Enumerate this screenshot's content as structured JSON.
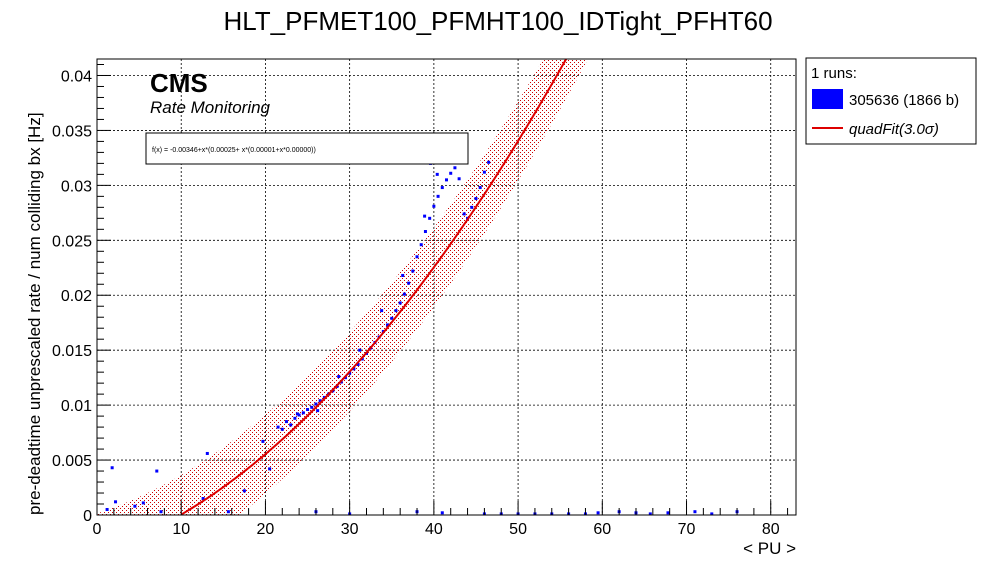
{
  "chart_data": {
    "type": "scatter",
    "title": "HLT_PFMET100_PFMHT100_IDTight_PFHT60",
    "xlabel": "< PU >",
    "ylabel": "pre-deadtime unprescaled rate / num colliding bx [Hz]",
    "xlim": [
      0,
      83
    ],
    "ylim": [
      0,
      0.0415
    ],
    "xticks": [
      0,
      10,
      20,
      30,
      40,
      50,
      60,
      70,
      80
    ],
    "yticks": [
      0,
      0.005,
      0.01,
      0.015,
      0.02,
      0.025,
      0.03,
      0.035,
      0.04
    ],
    "xtick_labels": [
      "0",
      "10",
      "20",
      "30",
      "40",
      "50",
      "60",
      "70",
      "80"
    ],
    "ytick_labels": [
      "0",
      "0.005",
      "0.01",
      "0.015",
      "0.02",
      "0.025",
      "0.03",
      "0.035",
      "0.04"
    ],
    "grid": true,
    "annotation_main": "CMS",
    "annotation_sub": "Rate Monitoring",
    "fit_formula": "f(x) = -0.00346+x*(0.00025+ x*(0.00001+x*0.00000))",
    "fit": {
      "c0": -0.00346,
      "c1": 0.00025,
      "c2": 1e-05,
      "c3": 0.0,
      "band_sigma": 3.0,
      "band_halfwidth": 0.0036
    },
    "legend": {
      "header": "1 runs:",
      "entries": [
        {
          "label": "305636 (1866 b)",
          "color": "#0000ff",
          "kind": "box"
        },
        {
          "label": "quadFit(3.0σ)",
          "color": "#dd0000",
          "kind": "line"
        }
      ],
      "placement": "right"
    },
    "series": [
      {
        "name": "305636 (1866 b)",
        "color": "#0000ff",
        "points": [
          [
            1.2,
            0.0005
          ],
          [
            1.8,
            0.0043
          ],
          [
            2.2,
            0.0012
          ],
          [
            4.5,
            0.0008
          ],
          [
            5.5,
            0.0011
          ],
          [
            7.1,
            0.004
          ],
          [
            7.6,
            0.0003
          ],
          [
            12.6,
            0.0015
          ],
          [
            13.1,
            0.0056
          ],
          [
            15.6,
            0.0003
          ],
          [
            17.5,
            0.0022
          ],
          [
            19.7,
            0.0067
          ],
          [
            20.5,
            0.0042
          ],
          [
            21.5,
            0.008
          ],
          [
            22.0,
            0.0078
          ],
          [
            22.5,
            0.0085
          ],
          [
            23.0,
            0.0082
          ],
          [
            23.5,
            0.0088
          ],
          [
            24.0,
            0.0091
          ],
          [
            24.5,
            0.0093
          ],
          [
            25.0,
            0.0096
          ],
          [
            25.5,
            0.0098
          ],
          [
            26.0,
            0.0101
          ],
          [
            26.5,
            0.0104
          ],
          [
            27.0,
            0.0107
          ],
          [
            27.5,
            0.011
          ],
          [
            28.0,
            0.0113
          ],
          [
            28.5,
            0.0117
          ],
          [
            29.0,
            0.0121
          ],
          [
            29.5,
            0.0125
          ],
          [
            30.0,
            0.0129
          ],
          [
            30.5,
            0.0133
          ],
          [
            31.0,
            0.0137
          ],
          [
            31.5,
            0.0142
          ],
          [
            32.0,
            0.0147
          ],
          [
            32.5,
            0.0152
          ],
          [
            33.0,
            0.0157
          ],
          [
            33.5,
            0.0162
          ],
          [
            34.0,
            0.0167
          ],
          [
            34.5,
            0.0173
          ],
          [
            35.0,
            0.0179
          ],
          [
            35.5,
            0.0186
          ],
          [
            36.0,
            0.0193
          ],
          [
            36.5,
            0.0201
          ],
          [
            37.0,
            0.0211
          ],
          [
            37.5,
            0.0222
          ],
          [
            38.0,
            0.0235
          ],
          [
            38.5,
            0.0246
          ],
          [
            39.0,
            0.0258
          ],
          [
            39.5,
            0.027
          ],
          [
            40.0,
            0.0281
          ],
          [
            40.5,
            0.029
          ],
          [
            41.0,
            0.0298
          ],
          [
            41.5,
            0.0305
          ],
          [
            42.0,
            0.0311
          ],
          [
            42.5,
            0.0316
          ],
          [
            43.0,
            0.0306
          ],
          [
            43.6,
            0.0274
          ],
          [
            44.0,
            0.027
          ],
          [
            44.5,
            0.028
          ],
          [
            45.0,
            0.0288
          ],
          [
            45.5,
            0.0298
          ],
          [
            46.0,
            0.0312
          ],
          [
            46.5,
            0.0321
          ],
          [
            39.6,
            0.032
          ],
          [
            40.4,
            0.031
          ],
          [
            38.9,
            0.0272
          ],
          [
            36.3,
            0.0218
          ],
          [
            33.8,
            0.0186
          ],
          [
            31.2,
            0.015
          ],
          [
            28.7,
            0.0126
          ],
          [
            26.2,
            0.0095
          ],
          [
            23.8,
            0.0092
          ],
          [
            26.0,
            0.0003
          ],
          [
            30.0,
            0.0001
          ],
          [
            38.0,
            0.0003
          ],
          [
            41.0,
            0.0002
          ],
          [
            46.0,
            0.0001
          ],
          [
            48.0,
            0.0001
          ],
          [
            50.0,
            0.0001
          ],
          [
            52.0,
            0.0001
          ],
          [
            54.0,
            0.0001
          ],
          [
            56.0,
            0.0001
          ],
          [
            58.0,
            0.0001
          ],
          [
            59.5,
            0.0002
          ],
          [
            62.0,
            0.0003
          ],
          [
            64.0,
            0.0002
          ],
          [
            65.7,
            0.0001
          ],
          [
            67.8,
            0.0002
          ],
          [
            71.0,
            0.0003
          ],
          [
            73.0,
            0.0001
          ],
          [
            76.0,
            0.0003
          ]
        ]
      }
    ]
  }
}
